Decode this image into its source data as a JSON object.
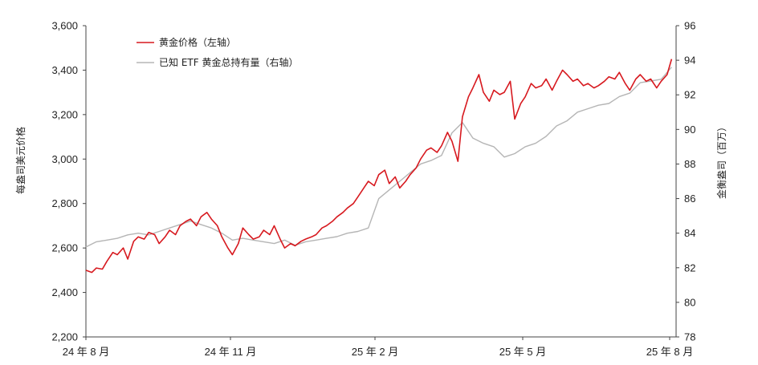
{
  "chart_data": {
    "type": "line",
    "title": "",
    "ylabel_left": "每盎司美元价格",
    "ylabel_right": "金衡盎司（百万）",
    "x_ticks": [
      "24 年 8 月",
      "24 年 11 月",
      "25 年 2 月",
      "25 年 5 月",
      "25 年 8 月"
    ],
    "ylim_left": [
      2200,
      3600
    ],
    "yticks_left": [
      "2,200",
      "2,400",
      "2,600",
      "2,800",
      "3,000",
      "3,200",
      "3,400",
      "3,600"
    ],
    "ylim_right": [
      78,
      96
    ],
    "yticks_right": [
      "78",
      "80",
      "82",
      "84",
      "86",
      "88",
      "90",
      "92",
      "94",
      "96"
    ],
    "legend_position": "top-left",
    "series": [
      {
        "name": "黄金价格（左轴）",
        "axis": "left",
        "color": "#d7191f",
        "x": [
          "2024-08-01",
          "2024-08-05",
          "2024-08-08",
          "2024-08-12",
          "2024-08-15",
          "2024-08-19",
          "2024-08-22",
          "2024-08-26",
          "2024-08-29",
          "2024-09-02",
          "2024-09-05",
          "2024-09-09",
          "2024-09-12",
          "2024-09-16",
          "2024-09-19",
          "2024-09-23",
          "2024-09-26",
          "2024-09-30",
          "2024-10-03",
          "2024-10-07",
          "2024-10-10",
          "2024-10-14",
          "2024-10-17",
          "2024-10-21",
          "2024-10-24",
          "2024-10-28",
          "2024-10-31",
          "2024-11-04",
          "2024-11-07",
          "2024-11-11",
          "2024-11-14",
          "2024-11-18",
          "2024-11-21",
          "2024-11-25",
          "2024-11-28",
          "2024-12-02",
          "2024-12-05",
          "2024-12-09",
          "2024-12-12",
          "2024-12-16",
          "2024-12-19",
          "2024-12-23",
          "2024-12-26",
          "2024-12-30",
          "2025-01-02",
          "2025-01-06",
          "2025-01-09",
          "2025-01-13",
          "2025-01-16",
          "2025-01-20",
          "2025-01-23",
          "2025-01-27",
          "2025-01-30",
          "2025-02-03",
          "2025-02-06",
          "2025-02-10",
          "2025-02-13",
          "2025-02-17",
          "2025-02-20",
          "2025-02-24",
          "2025-02-27",
          "2025-03-03",
          "2025-03-06",
          "2025-03-10",
          "2025-03-13",
          "2025-03-17",
          "2025-03-20",
          "2025-03-24",
          "2025-03-27",
          "2025-03-31",
          "2025-04-03",
          "2025-04-07",
          "2025-04-10",
          "2025-04-14",
          "2025-04-17",
          "2025-04-21",
          "2025-04-24",
          "2025-04-28",
          "2025-05-01",
          "2025-05-05",
          "2025-05-08",
          "2025-05-12",
          "2025-05-15",
          "2025-05-19",
          "2025-05-22",
          "2025-05-26",
          "2025-05-29",
          "2025-06-02",
          "2025-06-05",
          "2025-06-09",
          "2025-06-12",
          "2025-06-16",
          "2025-06-19",
          "2025-06-23",
          "2025-06-26",
          "2025-06-30",
          "2025-07-03",
          "2025-07-07",
          "2025-07-10",
          "2025-07-14",
          "2025-07-17",
          "2025-07-21",
          "2025-07-24",
          "2025-07-28",
          "2025-07-31",
          "2025-08-04",
          "2025-08-07",
          "2025-08-11",
          "2025-08-14",
          "2025-08-18",
          "2025-08-21",
          "2025-08-25",
          "2025-08-28"
        ],
        "values": [
          2500,
          2490,
          2510,
          2505,
          2540,
          2580,
          2570,
          2600,
          2550,
          2630,
          2650,
          2640,
          2670,
          2660,
          2620,
          2650,
          2680,
          2660,
          2700,
          2720,
          2730,
          2700,
          2740,
          2760,
          2730,
          2700,
          2650,
          2600,
          2570,
          2620,
          2690,
          2660,
          2640,
          2650,
          2680,
          2660,
          2700,
          2640,
          2600,
          2620,
          2610,
          2630,
          2640,
          2650,
          2660,
          2690,
          2700,
          2720,
          2740,
          2760,
          2780,
          2800,
          2830,
          2870,
          2900,
          2880,
          2930,
          2950,
          2890,
          2920,
          2870,
          2900,
          2930,
          2960,
          3000,
          3040,
          3050,
          3030,
          3060,
          3120,
          3080,
          2990,
          3190,
          3280,
          3320,
          3380,
          3300,
          3260,
          3310,
          3290,
          3300,
          3350,
          3180,
          3250,
          3280,
          3340,
          3320,
          3330,
          3360,
          3310,
          3350,
          3400,
          3380,
          3350,
          3360,
          3330,
          3340,
          3320,
          3330,
          3350,
          3370,
          3360,
          3390,
          3340,
          3310,
          3360,
          3380,
          3350,
          3360,
          3320,
          3350,
          3380,
          3450
        ]
      },
      {
        "name": "已知 ETF 黄金总持有量（右轴）",
        "axis": "right",
        "color": "#b5b5b5",
        "x": [
          "2024-08-01",
          "2024-08-08",
          "2024-08-15",
          "2024-08-22",
          "2024-08-29",
          "2024-09-05",
          "2024-09-12",
          "2024-09-19",
          "2024-09-26",
          "2024-10-03",
          "2024-10-10",
          "2024-10-17",
          "2024-10-24",
          "2024-10-31",
          "2024-11-07",
          "2024-11-14",
          "2024-11-21",
          "2024-11-28",
          "2024-12-05",
          "2024-12-12",
          "2024-12-19",
          "2024-12-26",
          "2025-01-02",
          "2025-01-09",
          "2025-01-16",
          "2025-01-23",
          "2025-01-30",
          "2025-02-06",
          "2025-02-13",
          "2025-02-20",
          "2025-02-27",
          "2025-03-06",
          "2025-03-13",
          "2025-03-20",
          "2025-03-27",
          "2025-04-03",
          "2025-04-10",
          "2025-04-17",
          "2025-04-24",
          "2025-05-01",
          "2025-05-08",
          "2025-05-15",
          "2025-05-22",
          "2025-05-29",
          "2025-06-05",
          "2025-06-12",
          "2025-06-19",
          "2025-06-26",
          "2025-07-03",
          "2025-07-10",
          "2025-07-17",
          "2025-07-24",
          "2025-07-31",
          "2025-08-07",
          "2025-08-14",
          "2025-08-21",
          "2025-08-28"
        ],
        "values": [
          83.2,
          83.5,
          83.6,
          83.7,
          83.9,
          84.0,
          83.9,
          84.1,
          84.3,
          84.5,
          84.7,
          84.5,
          84.3,
          84.0,
          83.6,
          83.7,
          83.6,
          83.5,
          83.4,
          83.6,
          83.3,
          83.5,
          83.6,
          83.7,
          83.8,
          84.0,
          84.1,
          84.3,
          86.0,
          86.5,
          87.0,
          87.5,
          88.0,
          88.2,
          88.5,
          89.8,
          90.4,
          89.5,
          89.2,
          89.0,
          88.4,
          88.6,
          89.0,
          89.2,
          89.6,
          90.2,
          90.5,
          91.0,
          91.2,
          91.4,
          91.5,
          91.9,
          92.1,
          92.7,
          92.8,
          92.9,
          93.6
        ]
      }
    ]
  }
}
